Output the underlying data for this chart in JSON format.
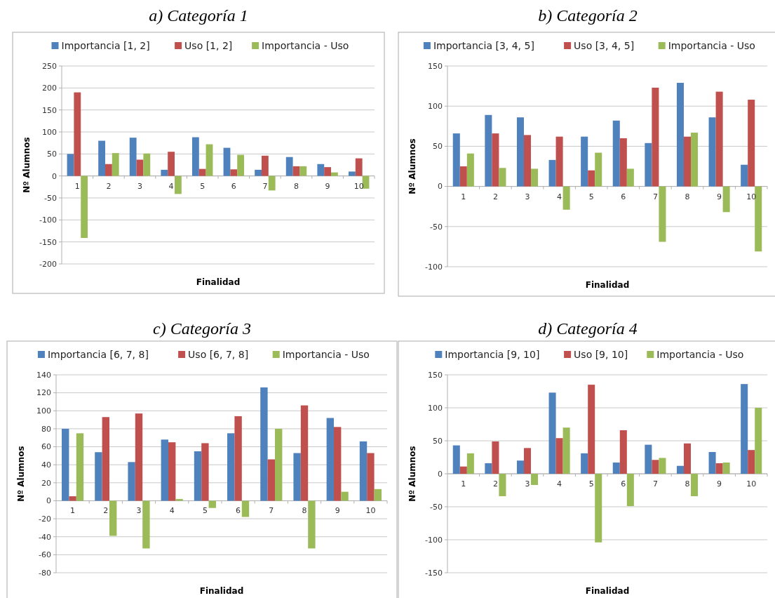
{
  "chart_data": [
    {
      "type": "bar",
      "title": "a) Categoría 1",
      "xlabel": "Finalidad",
      "ylabel": "Nº Alumnos",
      "categories": [
        "1",
        "2",
        "3",
        "4",
        "5",
        "6",
        "7",
        "8",
        "9",
        "10"
      ],
      "ylim": [
        -200,
        250
      ],
      "yticks": [
        -200,
        -150,
        -100,
        -50,
        0,
        50,
        100,
        150,
        200,
        250
      ],
      "grid": "y",
      "legend": "top",
      "series": [
        {
          "name": "Importancia [1, 2]",
          "color": "#4f81bd",
          "values": [
            50,
            80,
            87,
            14,
            88,
            64,
            14,
            43,
            27,
            10
          ]
        },
        {
          "name": "Uso [1, 2]",
          "color": "#c0504d",
          "values": [
            190,
            27,
            37,
            55,
            16,
            15,
            46,
            22,
            20,
            40
          ]
        },
        {
          "name": "Importancia - Uso",
          "color": "#9bbb59",
          "values": [
            -141,
            52,
            51,
            -41,
            72,
            48,
            -33,
            22,
            8,
            -29
          ]
        }
      ]
    },
    {
      "type": "bar",
      "title": "b) Categoría 2",
      "xlabel": "Finalidad",
      "ylabel": "Nº Alumnos",
      "categories": [
        "1",
        "2",
        "3",
        "4",
        "5",
        "6",
        "7",
        "8",
        "9",
        "10"
      ],
      "ylim": [
        -100,
        150
      ],
      "yticks": [
        -100,
        -50,
        0,
        50,
        100,
        150
      ],
      "grid": "y",
      "legend": "top",
      "series": [
        {
          "name": "Importancia [3, 4, 5]",
          "color": "#4f81bd",
          "values": [
            66,
            89,
            86,
            33,
            62,
            82,
            54,
            129,
            86,
            27
          ]
        },
        {
          "name": "Uso [3, 4, 5]",
          "color": "#c0504d",
          "values": [
            25,
            66,
            64,
            62,
            20,
            60,
            123,
            62,
            118,
            108
          ]
        },
        {
          "name": "Importancia - Uso",
          "color": "#9bbb59",
          "values": [
            41,
            23,
            22,
            -29,
            42,
            22,
            -69,
            67,
            -32,
            -81
          ]
        }
      ]
    },
    {
      "type": "bar",
      "title": "c) Categoría 3",
      "xlabel": "Finalidad",
      "ylabel": "Nº Alumnos",
      "categories": [
        "1",
        "2",
        "3",
        "4",
        "5",
        "6",
        "7",
        "8",
        "9",
        "10"
      ],
      "ylim": [
        -80,
        140
      ],
      "yticks": [
        -80,
        -60,
        -40,
        -20,
        0,
        20,
        40,
        60,
        80,
        100,
        120,
        140
      ],
      "grid": "y",
      "legend": "top",
      "series": [
        {
          "name": "Importancia [6, 7, 8]",
          "color": "#4f81bd",
          "values": [
            80,
            54,
            43,
            68,
            55,
            75,
            126,
            53,
            92,
            66
          ]
        },
        {
          "name": "Uso [6, 7, 8]",
          "color": "#c0504d",
          "values": [
            5,
            93,
            97,
            65,
            64,
            94,
            46,
            106,
            82,
            53
          ]
        },
        {
          "name": "Importancia - Uso",
          "color": "#9bbb59",
          "values": [
            75,
            -39,
            -53,
            2,
            -8,
            -18,
            80,
            -53,
            10,
            13
          ]
        }
      ]
    },
    {
      "type": "bar",
      "title": "d) Categoría 4",
      "xlabel": "Finalidad",
      "ylabel": "Nº Alumnos",
      "categories": [
        "1",
        "2",
        "3",
        "4",
        "5",
        "6",
        "7",
        "8",
        "9",
        "10"
      ],
      "ylim": [
        -150,
        150
      ],
      "yticks": [
        -150,
        -100,
        -50,
        0,
        50,
        100,
        150
      ],
      "grid": "y",
      "legend": "top",
      "series": [
        {
          "name": "Importancia [9, 10]",
          "color": "#4f81bd",
          "values": [
            43,
            16,
            20,
            123,
            31,
            17,
            44,
            12,
            33,
            136
          ]
        },
        {
          "name": "Uso [9, 10]",
          "color": "#c0504d",
          "values": [
            11,
            49,
            39,
            54,
            135,
            66,
            21,
            46,
            16,
            36
          ]
        },
        {
          "name": "Importancia - Uso",
          "color": "#9bbb59",
          "values": [
            31,
            -34,
            -17,
            70,
            -104,
            -49,
            24,
            -34,
            17,
            100
          ]
        }
      ]
    }
  ]
}
